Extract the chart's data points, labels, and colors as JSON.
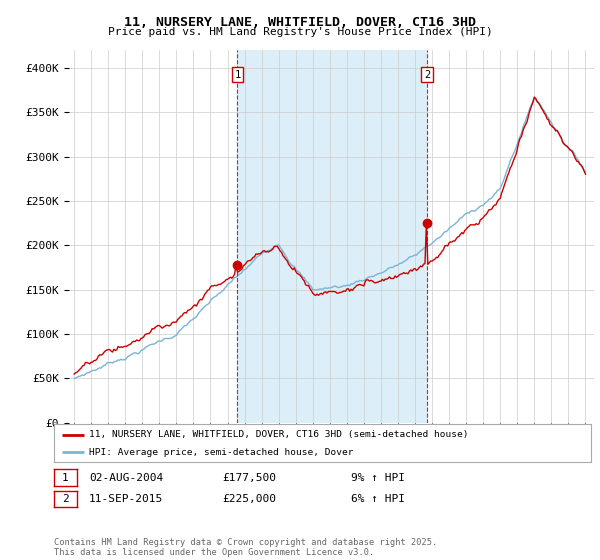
{
  "title": "11, NURSERY LANE, WHITFIELD, DOVER, CT16 3HD",
  "subtitle": "Price paid vs. HM Land Registry's House Price Index (HPI)",
  "ylim": [
    0,
    420000
  ],
  "yticks": [
    0,
    50000,
    100000,
    150000,
    200000,
    250000,
    300000,
    350000,
    400000
  ],
  "ytick_labels": [
    "£0",
    "£50K",
    "£100K",
    "£150K",
    "£200K",
    "£250K",
    "£300K",
    "£350K",
    "£400K"
  ],
  "hpi_color": "#7ab4d8",
  "price_color": "#cc0000",
  "shade_color": "#dceef7",
  "marker1_year": 2004.58,
  "marker1_price": 177500,
  "marker1_hpi": 168000,
  "marker2_year": 2015.7,
  "marker2_price": 225000,
  "marker2_hpi": 220000,
  "legend_line1": "11, NURSERY LANE, WHITFIELD, DOVER, CT16 3HD (semi-detached house)",
  "legend_line2": "HPI: Average price, semi-detached house, Dover",
  "footer": "Contains HM Land Registry data © Crown copyright and database right 2025.\nThis data is licensed under the Open Government Licence v3.0.",
  "background_color": "#ffffff",
  "grid_color": "#cccccc"
}
